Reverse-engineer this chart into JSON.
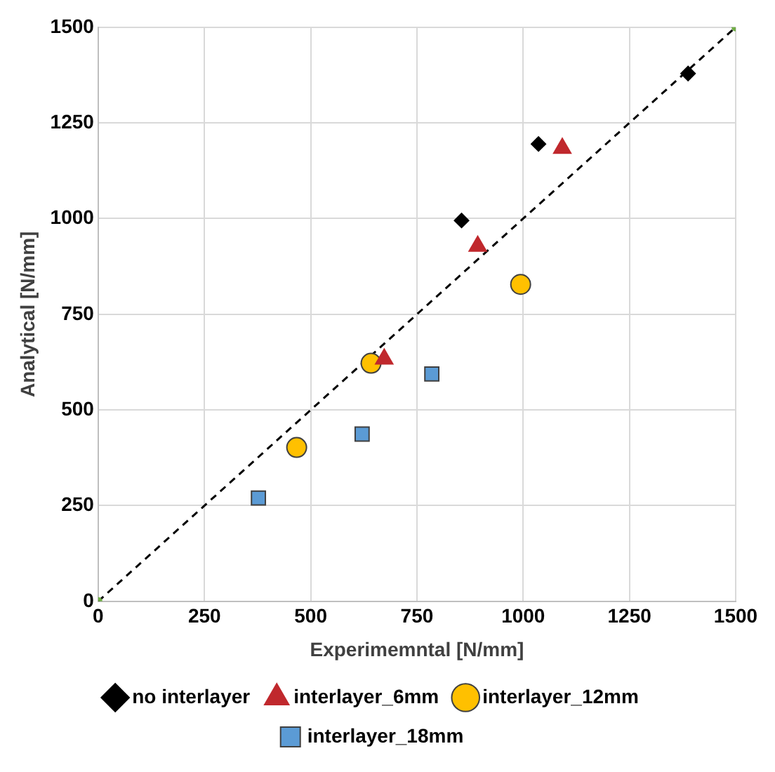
{
  "chart_data": {
    "type": "scatter",
    "xlabel": "Experimemntal [N/mm]",
    "ylabel": "Analytical [N/mm]",
    "xlim": [
      0,
      1500
    ],
    "ylim": [
      0,
      1500
    ],
    "xticks": [
      0,
      250,
      500,
      750,
      1000,
      1250,
      1500
    ],
    "yticks": [
      0,
      250,
      500,
      750,
      1000,
      1250,
      1500
    ],
    "grid": true,
    "legend": "bottom",
    "series": [
      {
        "type": "line",
        "color": "#000000",
        "x": [
          0,
          1500
        ],
        "values": [
          0,
          1500
        ],
        "line_style": "dashed",
        "marker": "none"
      },
      {
        "color": "#70ad47",
        "x": [
          0,
          1500
        ],
        "values": [
          0,
          1500
        ],
        "marker": "circle"
      },
      {
        "name": "no interlayer",
        "color": "#000000",
        "x": [
          855,
          1036,
          1388
        ],
        "values": [
          995,
          1195,
          1379
        ],
        "marker": "diamond"
      },
      {
        "name": "interlayer_6mm",
        "color": "#c0282d",
        "x": [
          673,
          893,
          1092
        ],
        "values": [
          633,
          928,
          1184
        ],
        "marker": "triangle"
      },
      {
        "name": "interlayer_12mm",
        "color": "#ffc000",
        "x": [
          467,
          642,
          994
        ],
        "values": [
          402,
          622,
          828
        ],
        "marker": "circle"
      },
      {
        "name": "interlayer_18mm",
        "color": "#5b9bd5",
        "x": [
          377,
          621,
          785
        ],
        "values": [
          270,
          437,
          594
        ],
        "marker": "square"
      }
    ]
  }
}
